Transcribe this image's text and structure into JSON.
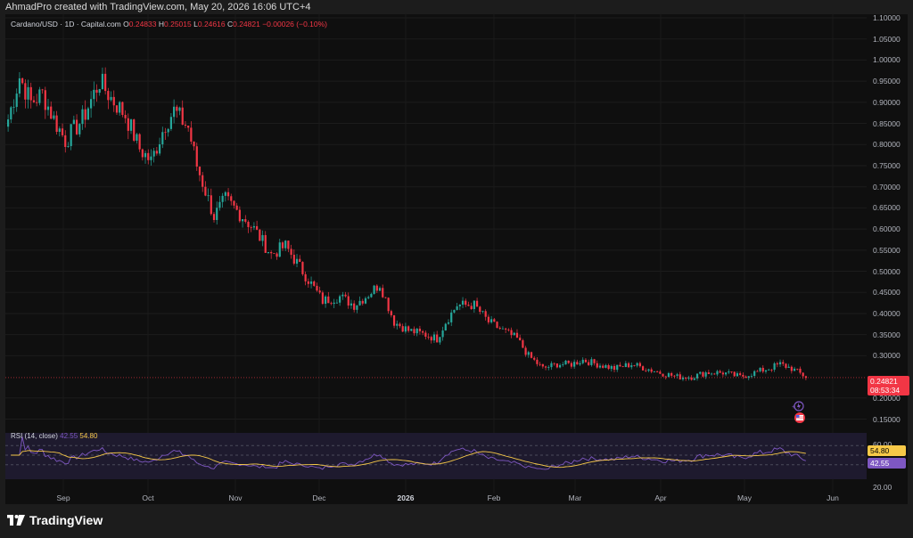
{
  "header": {
    "text": "AhmadPro created with TradingView.com, May 20, 2026 16:06 UTC+4"
  },
  "symbol": {
    "title": "Cardano/USD · 1D · Capital.com",
    "o_label": "O",
    "o": "0.24833",
    "h_label": "H",
    "h": "0.25015",
    "l_label": "L",
    "l": "0.24616",
    "c_label": "C",
    "c": "0.24821",
    "change": "−0.00026 (−0.10%)"
  },
  "rsi": {
    "label": "RSI (14, close)",
    "value": "42.55",
    "ma": "54.80",
    "ticks": [
      "60.00",
      "20.00"
    ]
  },
  "price_tag": {
    "price": "0.24821",
    "countdown": "08:53:34"
  },
  "price_scale": [
    "1.10000",
    "1.05000",
    "1.00000",
    "0.95000",
    "0.90000",
    "0.85000",
    "0.80000",
    "0.75000",
    "0.70000",
    "0.65000",
    "0.60000",
    "0.55000",
    "0.50000",
    "0.45000",
    "0.40000",
    "0.35000",
    "0.30000",
    "0.20000",
    "0.15000"
  ],
  "time_axis": [
    {
      "label": "Sep",
      "bold": false
    },
    {
      "label": "Oct",
      "bold": false
    },
    {
      "label": "Nov",
      "bold": false
    },
    {
      "label": "Dec",
      "bold": false
    },
    {
      "label": "2026",
      "bold": true
    },
    {
      "label": "Feb",
      "bold": false
    },
    {
      "label": "Mar",
      "bold": false
    },
    {
      "label": "Apr",
      "bold": false
    },
    {
      "label": "May",
      "bold": false
    },
    {
      "label": "Jun",
      "bold": false
    }
  ],
  "logo": {
    "text": "TradingView"
  },
  "colors": {
    "up": "#26a69a",
    "down": "#f23645",
    "rsi": "#7e57c2",
    "rsi_ma": "#f7c948",
    "bg": "#0f0f0f"
  },
  "chart_data": {
    "type": "candlestick",
    "y_range": [
      0.13,
      1.1
    ],
    "rsi_range": [
      0,
      100
    ],
    "anchors": [
      [
        0,
        0.86
      ],
      [
        4,
        0.96
      ],
      [
        8,
        0.9
      ],
      [
        12,
        0.92
      ],
      [
        16,
        0.86
      ],
      [
        20,
        0.81
      ],
      [
        26,
        0.86
      ],
      [
        32,
        0.95
      ],
      [
        36,
        0.91
      ],
      [
        41,
        0.87
      ],
      [
        46,
        0.79
      ],
      [
        50,
        0.76
      ],
      [
        55,
        0.85
      ],
      [
        58,
        0.88
      ],
      [
        63,
        0.84
      ],
      [
        66,
        0.75
      ],
      [
        69,
        0.69
      ],
      [
        72,
        0.63
      ],
      [
        76,
        0.67
      ],
      [
        82,
        0.63
      ],
      [
        86,
        0.6
      ],
      [
        92,
        0.54
      ],
      [
        97,
        0.56
      ],
      [
        101,
        0.52
      ],
      [
        106,
        0.47
      ],
      [
        110,
        0.43
      ],
      [
        116,
        0.44
      ],
      [
        121,
        0.42
      ],
      [
        125,
        0.44
      ],
      [
        130,
        0.47
      ],
      [
        135,
        0.38
      ],
      [
        140,
        0.36
      ],
      [
        146,
        0.35
      ],
      [
        150,
        0.34
      ],
      [
        153,
        0.38
      ],
      [
        157,
        0.42
      ],
      [
        163,
        0.42
      ],
      [
        168,
        0.38
      ],
      [
        173,
        0.36
      ],
      [
        178,
        0.34
      ],
      [
        182,
        0.3
      ],
      [
        187,
        0.27
      ],
      [
        192,
        0.28
      ],
      [
        197,
        0.28
      ],
      [
        201,
        0.29
      ],
      [
        206,
        0.28
      ],
      [
        212,
        0.27
      ],
      [
        218,
        0.28
      ],
      [
        223,
        0.27
      ],
      [
        228,
        0.26
      ],
      [
        234,
        0.25
      ],
      [
        239,
        0.25
      ],
      [
        244,
        0.26
      ],
      [
        250,
        0.26
      ],
      [
        256,
        0.25
      ],
      [
        261,
        0.26
      ],
      [
        266,
        0.27
      ],
      [
        270,
        0.28
      ],
      [
        274,
        0.27
      ],
      [
        279,
        0.25
      ]
    ]
  }
}
